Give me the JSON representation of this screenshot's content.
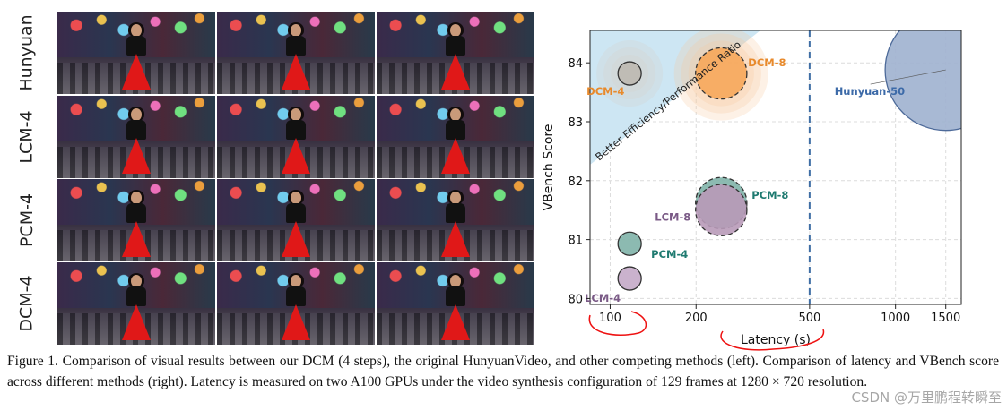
{
  "grid": {
    "rows": [
      "Hunyuan",
      "LCM-4",
      "PCM-4",
      "DCM-4"
    ],
    "frames_per_row": 3
  },
  "chart_data": {
    "type": "scatter",
    "xscale": "log",
    "xlim": [
      85,
      1700
    ],
    "ylim": [
      79.9,
      84.55
    ],
    "xticks": [
      100,
      200,
      500,
      1000,
      1500
    ],
    "xtick_labels": [
      "100",
      "200",
      "500",
      "1000",
      "1500"
    ],
    "yticks": [
      80,
      81,
      82,
      83,
      84
    ],
    "ytick_labels": [
      "80",
      "81",
      "82",
      "83",
      "84"
    ],
    "xlabel": "Latency (s)",
    "ylabel": "VBench Score",
    "grid": true,
    "region_label": "Better Efficiency/Performance Ratio",
    "reference_line_x": 500,
    "points": [
      {
        "name": "DCM-4",
        "x": 117,
        "y": 83.82,
        "size": 1,
        "color": "#bdb8b0",
        "edge": "#333333",
        "label_color": "#e88a2c",
        "halo": "#d6cfc6",
        "dashed": false
      },
      {
        "name": "DCM-8",
        "x": 245,
        "y": 83.82,
        "size": 2.2,
        "color": "#f6a75a",
        "edge": "#333333",
        "label_color": "#e88a2c",
        "halo": "#f8c79a",
        "dashed": true
      },
      {
        "name": "Hunyuan-50",
        "x": 1500,
        "y": 83.88,
        "size": 5.2,
        "color": "#9eb1cf",
        "edge": "#4d6a99",
        "label_color": "#3c6aa8",
        "halo": null,
        "dashed": false
      },
      {
        "name": "PCM-8",
        "x": 245,
        "y": 81.62,
        "size": 2.2,
        "color": "#7fb3a9",
        "edge": "#333333",
        "label_color": "#1e7a70",
        "halo": null,
        "dashed": true
      },
      {
        "name": "LCM-8",
        "x": 245,
        "y": 81.5,
        "size": 2.2,
        "color": "#b89ab8",
        "edge": "#333333",
        "label_color": "#7a5a86",
        "halo": null,
        "dashed": true
      },
      {
        "name": "PCM-4",
        "x": 117,
        "y": 80.93,
        "size": 1,
        "color": "#7fb3a9",
        "edge": "#333333",
        "label_color": "#1e7a70",
        "halo": null,
        "dashed": false
      },
      {
        "name": "LCM-4",
        "x": 117,
        "y": 80.34,
        "size": 1,
        "color": "#c4aac8",
        "edge": "#333333",
        "label_color": "#7a5a86",
        "halo": null,
        "dashed": false
      }
    ]
  },
  "caption": {
    "p1": "Figure 1.   Comparison of visual results between our DCM (4 steps), the original HunyuanVideo, and other competing methods (left). Comparison of latency and VBench score across different methods (right).  Latency is measured on ",
    "u1": "two A100 GPUs",
    "p2": " under the video synthesis configuration of ",
    "u2": "129 frames at 1280 × 720",
    "p3": " resolution."
  },
  "watermark": "CSDN @万里鹏程转瞬至"
}
